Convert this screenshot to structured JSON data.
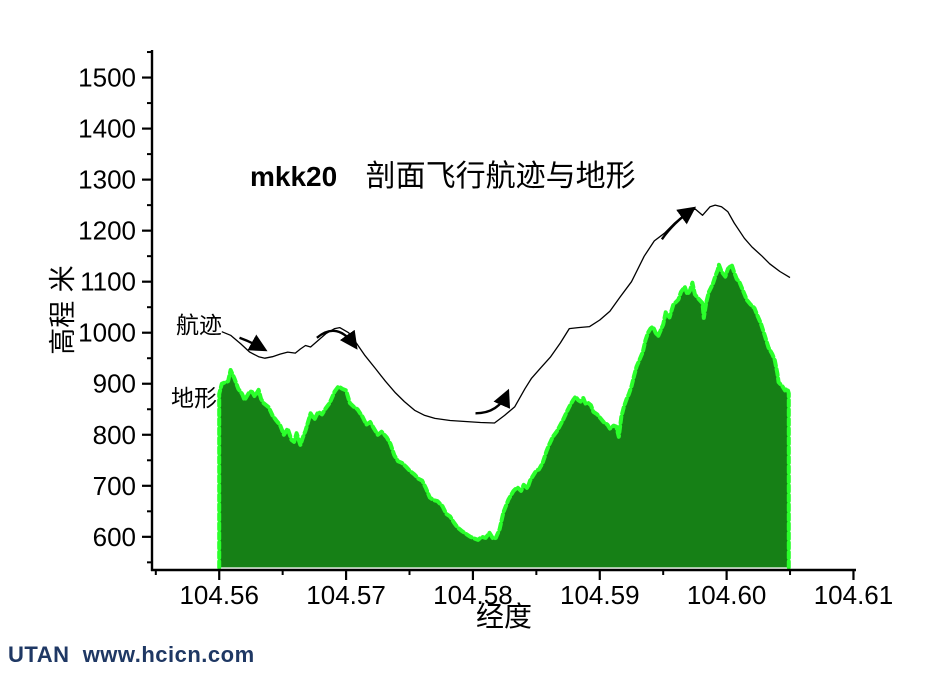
{
  "watermark": {
    "text": "UTAN  www.hcicn.com",
    "color": "#1F3864"
  },
  "chart_data": {
    "type": "area",
    "title": {
      "prefix": "mkk20",
      "main": "剖面飞行航迹与地形"
    },
    "xlabel": "经度",
    "ylabel": "高程 米",
    "colors": {
      "terrain_fill": "#168016",
      "terrain_edge": "#2BFF2B",
      "trajectory": "#000000",
      "axis": "#000000"
    },
    "x_axis": {
      "min": 104.5547,
      "max": 104.6102,
      "major_ticks": [
        104.56,
        104.57,
        104.58,
        104.59,
        104.6,
        104.61
      ],
      "major_labels": [
        "104.56",
        "104.57",
        "104.58",
        "104.59",
        "104.60",
        "104.61"
      ],
      "minor_ticks": [
        104.555,
        104.565,
        104.575,
        104.585,
        104.595,
        104.605
      ]
    },
    "y_axis": {
      "min": 535,
      "max": 1554,
      "major_ticks": [
        600,
        700,
        800,
        900,
        1000,
        1100,
        1200,
        1300,
        1400,
        1500
      ],
      "major_labels": [
        "600",
        "700",
        "800",
        "900",
        "1000",
        "1100",
        "1200",
        "1300",
        "1400",
        "1500"
      ],
      "minor_ticks": [
        550,
        650,
        750,
        850,
        950,
        1050,
        1150,
        1250,
        1350,
        1450,
        1550
      ]
    },
    "series": [
      {
        "name": "地形",
        "type": "area",
        "baseline": 540,
        "points": [
          [
            104.56,
            880
          ],
          [
            104.5602,
            900
          ],
          [
            104.5607,
            905
          ],
          [
            104.5609,
            927
          ],
          [
            104.5612,
            910
          ],
          [
            104.5615,
            890
          ],
          [
            104.5618,
            880
          ],
          [
            104.562,
            868
          ],
          [
            104.5624,
            885
          ],
          [
            104.5626,
            884
          ],
          [
            104.5628,
            875
          ],
          [
            104.5631,
            888
          ],
          [
            104.5633,
            870
          ],
          [
            104.5635,
            862
          ],
          [
            104.5639,
            854
          ],
          [
            104.5642,
            838
          ],
          [
            104.5645,
            828
          ],
          [
            104.5648,
            819
          ],
          [
            104.5651,
            800
          ],
          [
            104.5654,
            812
          ],
          [
            104.5657,
            790
          ],
          [
            104.5659,
            786
          ],
          [
            104.5661,
            803
          ],
          [
            104.5664,
            780
          ],
          [
            104.5666,
            795
          ],
          [
            104.5668,
            808
          ],
          [
            104.5672,
            842
          ],
          [
            104.5675,
            830
          ],
          [
            104.5678,
            845
          ],
          [
            104.5681,
            840
          ],
          [
            104.5684,
            852
          ],
          [
            104.5687,
            862
          ],
          [
            104.5691,
            885
          ],
          [
            104.5694,
            895
          ],
          [
            104.5697,
            890
          ],
          [
            104.57,
            887
          ],
          [
            104.5703,
            862
          ],
          [
            104.5706,
            855
          ],
          [
            104.5709,
            850
          ],
          [
            104.5713,
            835
          ],
          [
            104.5716,
            820
          ],
          [
            104.5719,
            825
          ],
          [
            104.5722,
            812
          ],
          [
            104.5725,
            800
          ],
          [
            104.5728,
            806
          ],
          [
            104.5732,
            795
          ],
          [
            104.5735,
            782
          ],
          [
            104.5738,
            760
          ],
          [
            104.5741,
            748
          ],
          [
            104.5744,
            745
          ],
          [
            104.5747,
            738
          ],
          [
            104.575,
            730
          ],
          [
            104.5754,
            722
          ],
          [
            104.5757,
            714
          ],
          [
            104.576,
            710
          ],
          [
            104.5763,
            695
          ],
          [
            104.5766,
            677
          ],
          [
            104.5769,
            672
          ],
          [
            104.5772,
            670
          ],
          [
            104.5776,
            660
          ],
          [
            104.5779,
            645
          ],
          [
            104.5782,
            640
          ],
          [
            104.5785,
            628
          ],
          [
            104.5788,
            618
          ],
          [
            104.5791,
            612
          ],
          [
            104.5795,
            605
          ],
          [
            104.5798,
            600
          ],
          [
            104.5801,
            597
          ],
          [
            104.5804,
            594
          ],
          [
            104.5807,
            600
          ],
          [
            104.581,
            598
          ],
          [
            104.5813,
            608
          ],
          [
            104.5816,
            596
          ],
          [
            104.5818,
            598
          ],
          [
            104.5821,
            615
          ],
          [
            104.5824,
            648
          ],
          [
            104.5828,
            673
          ],
          [
            104.5832,
            690
          ],
          [
            104.5835,
            697
          ],
          [
            104.5838,
            690
          ],
          [
            104.584,
            702
          ],
          [
            104.5843,
            695
          ],
          [
            104.5845,
            710
          ],
          [
            104.5847,
            718
          ],
          [
            104.585,
            730
          ],
          [
            104.5852,
            732
          ],
          [
            104.5855,
            745
          ],
          [
            104.5858,
            768
          ],
          [
            104.586,
            780
          ],
          [
            104.5863,
            796
          ],
          [
            104.5866,
            806
          ],
          [
            104.5868,
            815
          ],
          [
            104.5871,
            829
          ],
          [
            104.5874,
            845
          ],
          [
            104.5876,
            855
          ],
          [
            104.5879,
            868
          ],
          [
            104.5881,
            875
          ],
          [
            104.5883,
            868
          ],
          [
            104.5885,
            865
          ],
          [
            104.5887,
            872
          ],
          [
            104.5889,
            860
          ],
          [
            104.5891,
            862
          ],
          [
            104.5893,
            858
          ],
          [
            104.5895,
            845
          ],
          [
            104.5898,
            840
          ],
          [
            104.59,
            834
          ],
          [
            104.5903,
            825
          ],
          [
            104.5906,
            820
          ],
          [
            104.5908,
            812
          ],
          [
            104.5911,
            818
          ],
          [
            104.5913,
            816
          ],
          [
            104.5915,
            796
          ],
          [
            104.5917,
            835
          ],
          [
            104.5919,
            855
          ],
          [
            104.5921,
            869
          ],
          [
            104.5923,
            880
          ],
          [
            104.5925,
            895
          ],
          [
            104.5927,
            915
          ],
          [
            104.5929,
            934
          ],
          [
            104.5931,
            945
          ],
          [
            104.5934,
            963
          ],
          [
            104.5936,
            985
          ],
          [
            104.5938,
            1000
          ],
          [
            104.594,
            1008
          ],
          [
            104.5942,
            1012
          ],
          [
            104.5944,
            1000
          ],
          [
            104.5946,
            993
          ],
          [
            104.5948,
            1005
          ],
          [
            104.595,
            1016
          ],
          [
            104.5952,
            1040
          ],
          [
            104.5955,
            1030
          ],
          [
            104.5958,
            1055
          ],
          [
            104.596,
            1060
          ],
          [
            104.5962,
            1065
          ],
          [
            104.5964,
            1080
          ],
          [
            104.5967,
            1090
          ],
          [
            104.5969,
            1075
          ],
          [
            104.5971,
            1082
          ],
          [
            104.5973,
            1098
          ],
          [
            104.5975,
            1075
          ],
          [
            104.5978,
            1066
          ],
          [
            104.5981,
            1058
          ],
          [
            104.5982,
            1029
          ],
          [
            104.5984,
            1060
          ],
          [
            104.5986,
            1080
          ],
          [
            104.5989,
            1095
          ],
          [
            104.5991,
            1110
          ],
          [
            104.5993,
            1123
          ],
          [
            104.5994,
            1133
          ],
          [
            104.5996,
            1120
          ],
          [
            104.5999,
            1110
          ],
          [
            104.6001,
            1125
          ],
          [
            104.6004,
            1133
          ],
          [
            104.6006,
            1118
          ],
          [
            104.6008,
            1105
          ],
          [
            104.601,
            1100
          ],
          [
            104.6013,
            1082
          ],
          [
            104.6016,
            1064
          ],
          [
            104.6019,
            1055
          ],
          [
            104.6022,
            1048
          ],
          [
            104.6024,
            1035
          ],
          [
            104.6027,
            1018
          ],
          [
            104.603,
            995
          ],
          [
            104.6033,
            971
          ],
          [
            104.6036,
            958
          ],
          [
            104.6038,
            946
          ],
          [
            104.604,
            920
          ],
          [
            104.6041,
            903
          ],
          [
            104.6044,
            895
          ],
          [
            104.6046,
            887
          ],
          [
            104.6048,
            890
          ],
          [
            104.6049,
            881
          ]
        ]
      },
      {
        "name": "航迹",
        "type": "line",
        "points": [
          [
            104.5602,
            1002
          ],
          [
            104.5609,
            995
          ],
          [
            104.5617,
            978
          ],
          [
            104.5624,
            962
          ],
          [
            104.5631,
            953
          ],
          [
            104.5636,
            950
          ],
          [
            104.5642,
            953
          ],
          [
            104.5648,
            958
          ],
          [
            104.5654,
            962
          ],
          [
            104.566,
            960
          ],
          [
            104.5664,
            968
          ],
          [
            104.5668,
            975
          ],
          [
            104.5672,
            972
          ],
          [
            104.5678,
            985
          ],
          [
            104.5684,
            998
          ],
          [
            104.5691,
            1008
          ],
          [
            104.5695,
            1010
          ],
          [
            104.5702,
            1000
          ],
          [
            104.5708,
            980
          ],
          [
            104.5715,
            955
          ],
          [
            104.5723,
            930
          ],
          [
            104.5731,
            905
          ],
          [
            104.5739,
            882
          ],
          [
            104.5746,
            865
          ],
          [
            104.5754,
            848
          ],
          [
            104.5762,
            838
          ],
          [
            104.577,
            832
          ],
          [
            104.5782,
            828
          ],
          [
            104.5794,
            826
          ],
          [
            104.5806,
            824
          ],
          [
            104.5817,
            823
          ],
          [
            104.5825,
            838
          ],
          [
            104.5833,
            855
          ],
          [
            104.5841,
            890
          ],
          [
            104.5846,
            910
          ],
          [
            104.5853,
            930
          ],
          [
            104.5861,
            952
          ],
          [
            104.5869,
            980
          ],
          [
            104.5876,
            1008
          ],
          [
            104.5883,
            1010
          ],
          [
            104.5892,
            1012
          ],
          [
            104.59,
            1025
          ],
          [
            104.5908,
            1042
          ],
          [
            104.5916,
            1070
          ],
          [
            104.5925,
            1100
          ],
          [
            104.5935,
            1150
          ],
          [
            104.5943,
            1180
          ],
          [
            104.5951,
            1195
          ],
          [
            104.5959,
            1215
          ],
          [
            104.5967,
            1232
          ],
          [
            104.5975,
            1243
          ],
          [
            104.5981,
            1230
          ],
          [
            104.5987,
            1247
          ],
          [
            104.5991,
            1250
          ],
          [
            104.5996,
            1247
          ],
          [
            104.6001,
            1237
          ],
          [
            104.6006,
            1215
          ],
          [
            104.6014,
            1185
          ],
          [
            104.602,
            1168
          ],
          [
            104.6028,
            1150
          ],
          [
            104.6034,
            1135
          ],
          [
            104.6042,
            1120
          ],
          [
            104.605,
            1108
          ]
        ]
      }
    ],
    "annotations": {
      "arrows": [
        {
          "from": [
            104.5616,
            990
          ],
          "ctrl": [
            104.5625,
            982
          ],
          "to": [
            104.5635,
            968
          ]
        },
        {
          "from": [
            104.5677,
            990
          ],
          "ctrl": [
            104.5693,
            1024
          ],
          "to": [
            104.5707,
            974
          ]
        },
        {
          "from": [
            104.5802,
            842
          ],
          "ctrl": [
            104.582,
            842
          ],
          "to": [
            104.5827,
            882
          ]
        },
        {
          "from": [
            104.5949,
            1183
          ],
          "ctrl": [
            104.5958,
            1215
          ],
          "to": [
            104.5973,
            1242
          ]
        }
      ]
    }
  }
}
